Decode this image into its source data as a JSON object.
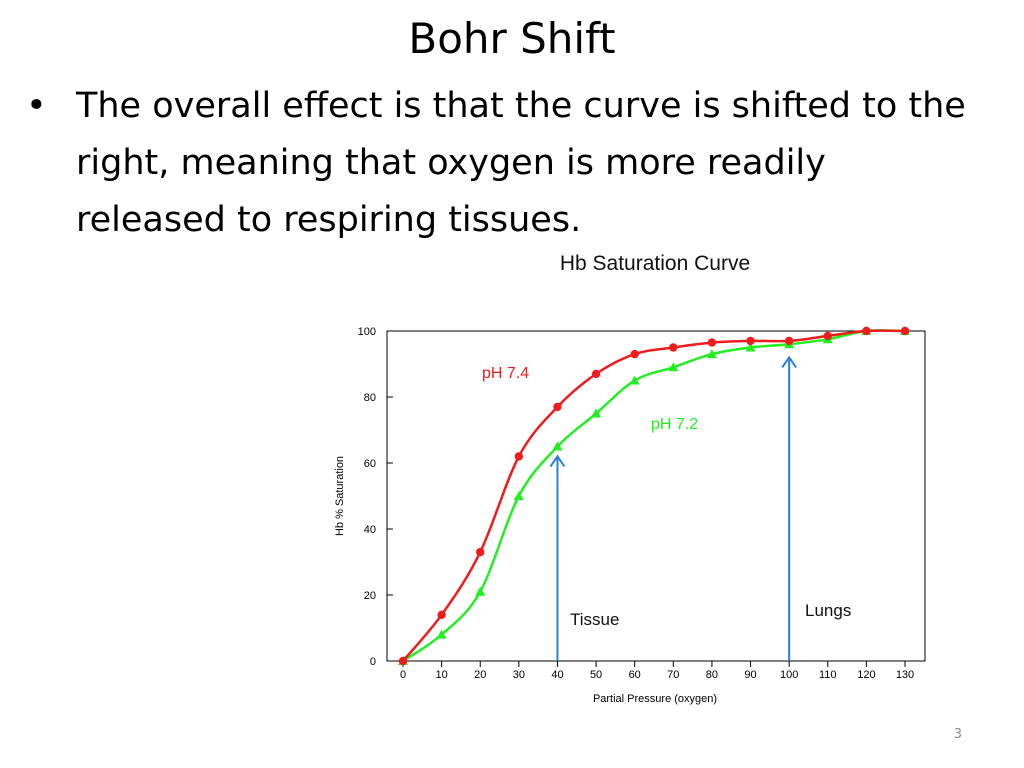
{
  "slide": {
    "title": "Bohr Shift",
    "bullet_marker": "•",
    "bullets": [
      "The overall effect is that the curve is shifted to the right, meaning that oxygen is more readily released to respiring tissues."
    ],
    "page_number": "3"
  },
  "chart_data": {
    "type": "line",
    "title": "Hb Saturation Curve",
    "xlabel": "Partial Pressure (oxygen)",
    "ylabel": "Hb % Saturation",
    "xlim": [
      0,
      130
    ],
    "ylim": [
      0,
      100
    ],
    "x_ticks": [
      0,
      10,
      20,
      30,
      40,
      50,
      60,
      70,
      80,
      90,
      100,
      110,
      120,
      130
    ],
    "y_ticks": [
      0,
      20,
      40,
      60,
      80,
      100
    ],
    "grid": false,
    "series": [
      {
        "name": "pH 7.4",
        "color": "#ee1c1c",
        "marker": "circle",
        "x": [
          0,
          10,
          20,
          30,
          40,
          50,
          60,
          70,
          80,
          90,
          100,
          110,
          120,
          130
        ],
        "y": [
          0,
          14,
          33,
          62,
          77,
          87,
          93,
          95,
          96.5,
          97,
          97,
          98.5,
          100,
          100
        ]
      },
      {
        "name": "pH 7.2",
        "color": "#22ee22",
        "marker": "triangle",
        "x": [
          0,
          10,
          20,
          30,
          40,
          50,
          60,
          70,
          80,
          90,
          100,
          110,
          120,
          130
        ],
        "y": [
          0,
          8,
          21,
          50,
          65,
          75,
          85,
          89,
          93,
          95,
          96,
          97.5,
          100,
          100
        ]
      }
    ],
    "annotations": [
      {
        "text": "Tissue",
        "x": 40,
        "arrow_to_y": 62
      },
      {
        "text": "Lungs",
        "x": 100,
        "arrow_to_y": 92
      }
    ],
    "arrow_color": "#2a7fd8"
  }
}
